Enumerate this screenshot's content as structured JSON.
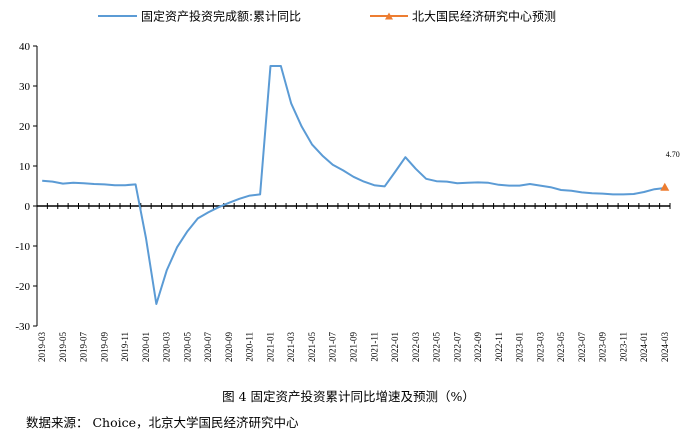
{
  "caption": "图 4    固定资产投资累计同比增速及预测（%）",
  "source": "数据来源：  Choice，北京大学国民经济研究中心",
  "colors": {
    "actual": "#5B9BD5",
    "forecast": "#ED7D31",
    "axis": "#000000"
  },
  "chart_data": {
    "type": "line",
    "title": "",
    "legend_position": "top",
    "ylim": [
      -30,
      40
    ],
    "yticks": [
      -30,
      -20,
      -10,
      0,
      10,
      20,
      30,
      40
    ],
    "grid": false,
    "x": [
      "2019-03",
      "2019-04",
      "2019-05",
      "2019-06",
      "2019-07",
      "2019-08",
      "2019-09",
      "2019-10",
      "2019-11",
      "2019-12",
      "2020-01",
      "2020-02",
      "2020-03",
      "2020-04",
      "2020-05",
      "2020-06",
      "2020-07",
      "2020-08",
      "2020-09",
      "2020-10",
      "2020-11",
      "2020-12",
      "2021-01",
      "2021-02",
      "2021-03",
      "2021-04",
      "2021-05",
      "2021-06",
      "2021-07",
      "2021-08",
      "2021-09",
      "2021-10",
      "2021-11",
      "2021-12",
      "2022-01",
      "2022-02",
      "2022-03",
      "2022-04",
      "2022-05",
      "2022-06",
      "2022-07",
      "2022-08",
      "2022-09",
      "2022-10",
      "2022-11",
      "2022-12",
      "2023-01",
      "2023-02",
      "2023-03",
      "2023-04",
      "2023-05",
      "2023-06",
      "2023-07",
      "2023-08",
      "2023-09",
      "2023-10",
      "2023-11",
      "2023-12",
      "2024-01",
      "2024-02",
      "2024-03"
    ],
    "tick_labels": [
      "2019-03",
      "2019-05",
      "2019-07",
      "2019-09",
      "2019-11",
      "2020-01",
      "2020-03",
      "2020-05",
      "2020-07",
      "2020-09",
      "2020-11",
      "2021-01",
      "2021-03",
      "2021-05",
      "2021-07",
      "2021-09",
      "2021-11",
      "2022-01",
      "2022-03",
      "2022-05",
      "2022-07",
      "2022-09",
      "2022-11",
      "2023-01",
      "2023-03",
      "2023-05",
      "2023-07",
      "2023-09",
      "2023-11",
      "2024-01",
      "2024-03"
    ],
    "series": [
      {
        "name": "固定资产投资完成额:累计同比",
        "values": [
          6.3,
          6.1,
          5.6,
          5.8,
          5.7,
          5.5,
          5.4,
          5.2,
          5.2,
          5.4,
          -8.0,
          -24.5,
          -16.1,
          -10.3,
          -6.3,
          -3.1,
          -1.6,
          -0.3,
          0.8,
          1.8,
          2.6,
          2.9,
          35.0,
          35.0,
          25.6,
          19.9,
          15.4,
          12.6,
          10.3,
          8.9,
          7.3,
          6.1,
          5.2,
          4.9,
          8.5,
          12.2,
          9.3,
          6.8,
          6.2,
          6.1,
          5.7,
          5.8,
          5.9,
          5.8,
          5.3,
          5.1,
          5.1,
          5.5,
          5.1,
          4.7,
          4.0,
          3.8,
          3.4,
          3.2,
          3.1,
          2.9,
          2.9,
          3.0,
          3.5,
          4.2,
          4.5
        ]
      },
      {
        "name": "北大国民经济研究中心预测",
        "values": [
          null,
          null,
          null,
          null,
          null,
          null,
          null,
          null,
          null,
          null,
          null,
          null,
          null,
          null,
          null,
          null,
          null,
          null,
          null,
          null,
          null,
          null,
          null,
          null,
          null,
          null,
          null,
          null,
          null,
          null,
          null,
          null,
          null,
          null,
          null,
          null,
          null,
          null,
          null,
          null,
          null,
          null,
          null,
          null,
          null,
          null,
          null,
          null,
          null,
          null,
          null,
          null,
          null,
          null,
          null,
          null,
          null,
          null,
          null,
          null,
          4.7
        ]
      }
    ],
    "annotations": [
      {
        "x": "2024-03",
        "text": "4.70"
      }
    ]
  }
}
